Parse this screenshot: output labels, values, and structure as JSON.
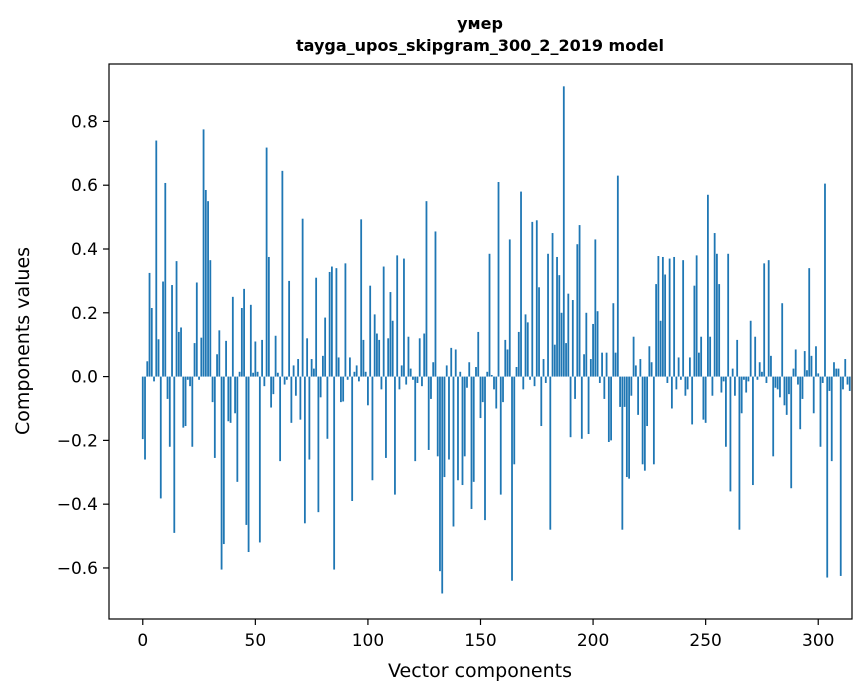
{
  "chart_data": {
    "type": "bar",
    "title": "умер",
    "subtitle": "tayga_upos_skipgram_300_2_2019 model",
    "xlabel": "Vector components",
    "ylabel": "Components values",
    "xlim": [
      -15,
      315
    ],
    "ylim": [
      -0.76,
      0.98
    ],
    "x_ticks": [
      0,
      50,
      100,
      150,
      200,
      250,
      300
    ],
    "x_tick_labels": [
      "0",
      "50",
      "100",
      "150",
      "200",
      "250",
      "300"
    ],
    "y_ticks": [
      -0.6,
      -0.4,
      -0.2,
      0.0,
      0.2,
      0.4,
      0.6,
      0.8
    ],
    "y_tick_labels": [
      "−0.6",
      "−0.4",
      "−0.2",
      "0.0",
      "0.2",
      "0.4",
      "0.6",
      "0.8"
    ],
    "bar_color": "#1f77b4",
    "grid": false,
    "values": [
      -0.196,
      -0.26,
      0.048,
      0.325,
      0.215,
      -0.015,
      0.74,
      0.117,
      -0.382,
      0.298,
      0.607,
      -0.07,
      -0.22,
      0.287,
      -0.49,
      0.362,
      0.14,
      0.154,
      -0.16,
      -0.155,
      -0.01,
      -0.03,
      -0.22,
      0.105,
      0.295,
      -0.01,
      0.122,
      0.775,
      0.585,
      0.55,
      0.365,
      -0.08,
      -0.255,
      0.07,
      0.145,
      -0.605,
      -0.525,
      0.112,
      -0.14,
      -0.145,
      0.25,
      -0.115,
      -0.33,
      0.015,
      0.215,
      0.275,
      -0.465,
      -0.55,
      0.225,
      0.012,
      0.11,
      0.015,
      -0.52,
      0.115,
      -0.03,
      0.718,
      0.375,
      -0.097,
      -0.055,
      0.128,
      0.012,
      -0.265,
      0.645,
      -0.025,
      -0.01,
      0.3,
      -0.145,
      0.035,
      -0.06,
      0.055,
      -0.135,
      0.495,
      -0.46,
      0.12,
      -0.26,
      0.055,
      0.025,
      0.31,
      -0.425,
      -0.065,
      0.065,
      0.185,
      -0.195,
      0.328,
      0.345,
      -0.605,
      0.34,
      0.06,
      -0.08,
      -0.078,
      0.355,
      -0.01,
      0.06,
      -0.39,
      0.015,
      0.035,
      -0.015,
      0.493,
      0.115,
      0.015,
      -0.09,
      0.285,
      -0.325,
      0.195,
      0.135,
      0.115,
      -0.04,
      0.345,
      -0.255,
      0.12,
      0.265,
      0.175,
      -0.37,
      0.38,
      -0.04,
      0.035,
      0.37,
      -0.025,
      0.125,
      0.025,
      -0.01,
      -0.265,
      -0.02,
      0.12,
      -0.03,
      0.135,
      0.55,
      -0.23,
      -0.07,
      0.045,
      0.455,
      -0.25,
      -0.61,
      -0.68,
      -0.315,
      0.035,
      -0.26,
      0.09,
      -0.47,
      0.085,
      -0.325,
      0.015,
      -0.34,
      -0.25,
      -0.035,
      0.045,
      -0.415,
      -0.33,
      0.03,
      0.14,
      -0.13,
      -0.08,
      -0.45,
      0.015,
      0.385,
      0.005,
      -0.04,
      -0.1,
      0.61,
      -0.37,
      -0.08,
      0.115,
      0.085,
      0.43,
      -0.64,
      -0.275,
      0.03,
      0.14,
      0.58,
      -0.04,
      0.195,
      0.17,
      -0.01,
      0.485,
      -0.03,
      0.49,
      0.28,
      -0.155,
      0.055,
      -0.02,
      0.385,
      -0.48,
      0.45,
      0.1,
      0.375,
      0.318,
      0.2,
      0.91,
      0.105,
      0.26,
      -0.19,
      0.24,
      -0.07,
      0.415,
      0.475,
      -0.195,
      0.07,
      0.2,
      -0.18,
      0.055,
      0.165,
      0.43,
      0.205,
      -0.02,
      0.075,
      -0.07,
      0.075,
      -0.205,
      -0.2,
      0.23,
      0.075,
      0.63,
      -0.095,
      -0.48,
      -0.095,
      -0.315,
      -0.32,
      -0.06,
      0.125,
      0.035,
      -0.12,
      0.055,
      -0.275,
      -0.295,
      -0.155,
      0.095,
      0.045,
      -0.275,
      0.29,
      0.378,
      0.175,
      0.375,
      0.32,
      -0.02,
      0.37,
      -0.1,
      0.375,
      -0.04,
      0.06,
      -0.01,
      0.365,
      -0.06,
      -0.04,
      0.06,
      -0.15,
      0.285,
      0.38,
      0.075,
      0.125,
      -0.135,
      -0.145,
      0.57,
      0.125,
      -0.06,
      0.45,
      0.385,
      0.29,
      -0.05,
      -0.015,
      -0.22,
      0.385,
      -0.36,
      0.025,
      -0.06,
      0.115,
      -0.48,
      -0.115,
      -0.01,
      -0.05,
      -0.015,
      0.175,
      -0.34,
      0.125,
      -0.01,
      0.045,
      0.015,
      0.355,
      -0.02,
      0.365,
      0.065,
      -0.25,
      -0.035,
      -0.04,
      -0.065,
      0.23,
      -0.09,
      -0.12,
      -0.055,
      -0.35,
      0.025,
      0.085,
      -0.025,
      -0.165,
      -0.07,
      0.08,
      0.02,
      0.34,
      0.065,
      -0.115,
      0.095,
      0.01,
      -0.22,
      -0.02,
      0.605,
      -0.63,
      -0.045,
      -0.265,
      0.045,
      0.025,
      0.025,
      -0.625,
      -0.04,
      0.055,
      -0.025,
      -0.045
    ]
  }
}
